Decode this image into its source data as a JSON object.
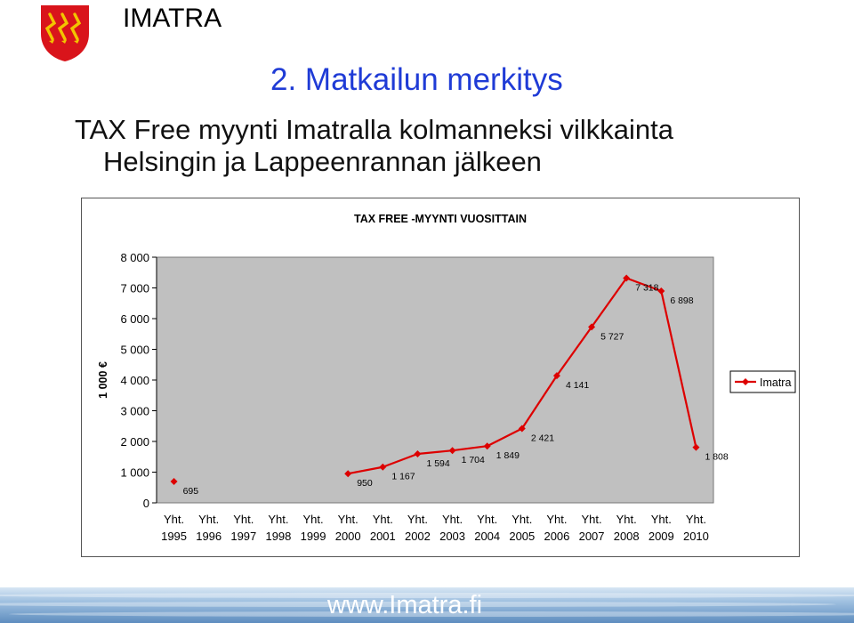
{
  "header": {
    "brand": "IMATRA",
    "logo_icon": "imatra-coat-of-arms-icon",
    "section_title": "2. Matkailun merkitys",
    "headline_line1": "TAX Free myynti Imatralla kolmanneksi vilkkainta",
    "headline_line2": "Helsingin ja Lappeenrannan jälkeen"
  },
  "footer": {
    "url": "www.Imatra.fi"
  },
  "colors": {
    "title_blue": "#1f3bd6",
    "series_red": "#dd0000",
    "plot_bg": "#c0c0c0",
    "logo_red": "#d9141b"
  },
  "chart_data": {
    "type": "line",
    "title": "TAX FREE -MYYNTI VUOSITTAIN",
    "ylabel": "1 000 €",
    "xlabel": "",
    "ylim": [
      0,
      8000
    ],
    "yticks": [
      0,
      1000,
      2000,
      3000,
      4000,
      5000,
      6000,
      7000,
      8000
    ],
    "ytick_labels": [
      "0",
      "1 000",
      "2 000",
      "3 000",
      "4 000",
      "5 000",
      "6 000",
      "7 000",
      "8 000"
    ],
    "categories": [
      "Yht. 1995",
      "Yht. 1996",
      "Yht. 1997",
      "Yht. 1998",
      "Yht. 1999",
      "Yht. 2000",
      "Yht. 2001",
      "Yht. 2002",
      "Yht. 2003",
      "Yht. 2004",
      "Yht. 2005",
      "Yht. 2006",
      "Yht. 2007",
      "Yht. 2008",
      "Yht. 2009",
      "Yht. 2010"
    ],
    "category_lines": [
      [
        "Yht.",
        "1995"
      ],
      [
        "Yht.",
        "1996"
      ],
      [
        "Yht.",
        "1997"
      ],
      [
        "Yht.",
        "1998"
      ],
      [
        "Yht.",
        "1999"
      ],
      [
        "Yht.",
        "2000"
      ],
      [
        "Yht.",
        "2001"
      ],
      [
        "Yht.",
        "2002"
      ],
      [
        "Yht.",
        "2003"
      ],
      [
        "Yht.",
        "2004"
      ],
      [
        "Yht.",
        "2005"
      ],
      [
        "Yht.",
        "2006"
      ],
      [
        "Yht.",
        "2007"
      ],
      [
        "Yht.",
        "2008"
      ],
      [
        "Yht.",
        "2009"
      ],
      [
        "Yht.",
        "2010"
      ]
    ],
    "series": [
      {
        "name": "Imatra",
        "color": "#dd0000",
        "values": [
          695,
          null,
          null,
          null,
          null,
          950,
          1167,
          1594,
          1704,
          1849,
          2421,
          4141,
          5727,
          7318,
          6898,
          1808
        ],
        "labels": [
          "695",
          "",
          "",
          "",
          "",
          "950",
          "1 167",
          "1 594",
          "1 704",
          "1 849",
          "2 421",
          "4 141",
          "5 727",
          "7 318",
          "6 898",
          "1 808"
        ]
      }
    ],
    "grid": false,
    "legend_position": "right"
  }
}
